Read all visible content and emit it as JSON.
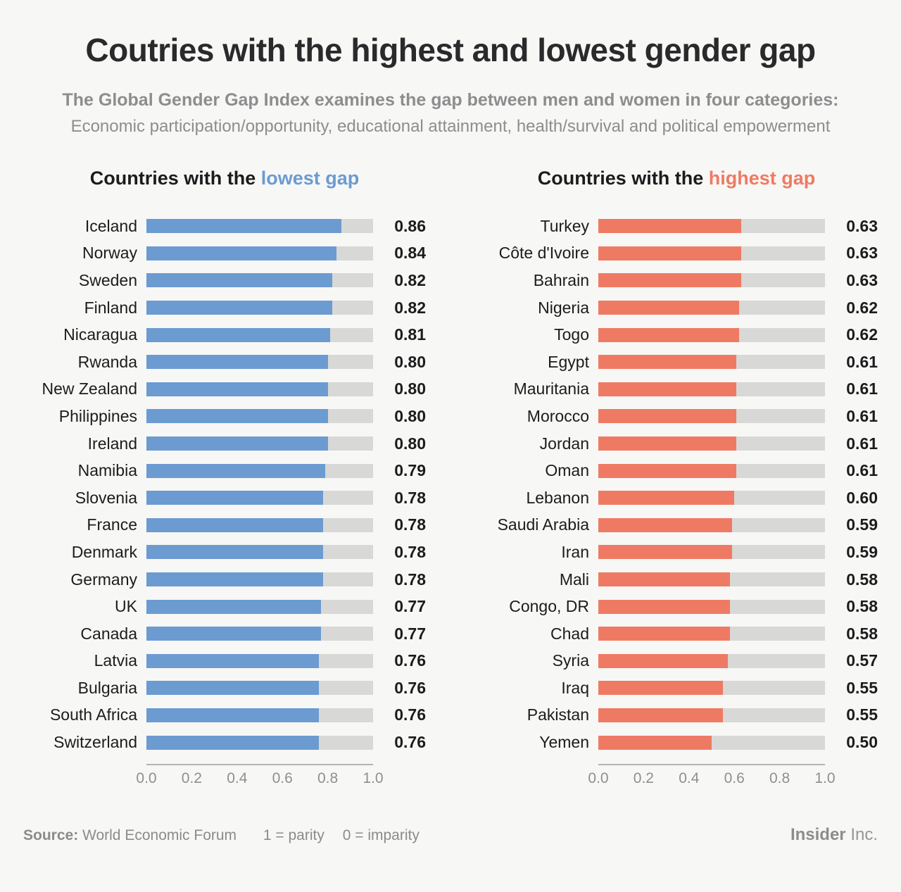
{
  "header": {
    "title": "Coutries with the highest and lowest gender gap",
    "subtitle_line1": "The Global Gender Gap Index examines the gap between men and women in four categories:",
    "subtitle_line2": "Economic participation/opportunity, educational attainment, health/survival and political empowerment"
  },
  "colors": {
    "background": "#f7f7f5",
    "lowest_gap_accent": "#6b9bd1",
    "highest_gap_accent": "#ef7a63",
    "bar_track": "#d8d8d6",
    "text_dark": "#1c1c1e",
    "text_gray": "#8d8d8f"
  },
  "chart_data": [
    {
      "type": "bar",
      "orientation": "horizontal",
      "title": "Countries with the lowest gap",
      "title_prefix": "Countries with the ",
      "title_highlight": "lowest gap",
      "highlight_color": "#6b9bd1",
      "bar_color": "#6b9bd1",
      "track_color": "#d8d8d6",
      "grid": false,
      "legend_position": "none",
      "xlabel": "",
      "ylabel": "",
      "xlim": [
        0,
        1
      ],
      "x_ticks": [
        "0.0",
        "0.2",
        "0.4",
        "0.6",
        "0.8",
        "1.0"
      ],
      "categories": [
        "Iceland",
        "Norway",
        "Sweden",
        "Finland",
        "Nicaragua",
        "Rwanda",
        "New Zealand",
        "Philippines",
        "Ireland",
        "Namibia",
        "Slovenia",
        "France",
        "Denmark",
        "Germany",
        "UK",
        "Canada",
        "Latvia",
        "Bulgaria",
        "South Africa",
        "Switzerland"
      ],
      "values": [
        0.86,
        0.84,
        0.82,
        0.82,
        0.81,
        0.8,
        0.8,
        0.8,
        0.8,
        0.79,
        0.78,
        0.78,
        0.78,
        0.78,
        0.77,
        0.77,
        0.76,
        0.76,
        0.76,
        0.76
      ]
    },
    {
      "type": "bar",
      "orientation": "horizontal",
      "title": "Countries with the highest gap",
      "title_prefix": "Countries with the ",
      "title_highlight": "highest gap",
      "highlight_color": "#ef7a63",
      "bar_color": "#ef7a63",
      "track_color": "#d8d8d6",
      "grid": false,
      "legend_position": "none",
      "xlabel": "",
      "ylabel": "",
      "xlim": [
        0,
        1
      ],
      "x_ticks": [
        "0.0",
        "0.2",
        "0.4",
        "0.6",
        "0.8",
        "1.0"
      ],
      "categories": [
        "Turkey",
        "Côte d'Ivoire",
        "Bahrain",
        "Nigeria",
        "Togo",
        "Egypt",
        "Mauritania",
        "Morocco",
        "Jordan",
        "Oman",
        "Lebanon",
        "Saudi Arabia",
        "Iran",
        "Mali",
        "Congo, DR",
        "Chad",
        "Syria",
        "Iraq",
        "Pakistan",
        "Yemen"
      ],
      "values": [
        0.63,
        0.63,
        0.63,
        0.62,
        0.62,
        0.61,
        0.61,
        0.61,
        0.61,
        0.61,
        0.6,
        0.59,
        0.59,
        0.58,
        0.58,
        0.58,
        0.57,
        0.55,
        0.55,
        0.5
      ]
    }
  ],
  "footer": {
    "source_label": "Source:",
    "source_value": "World Economic Forum",
    "legend_parity": "1 = parity",
    "legend_imparity": "0 = imparity",
    "brand_bold": "Insider",
    "brand_regular": "Inc."
  }
}
